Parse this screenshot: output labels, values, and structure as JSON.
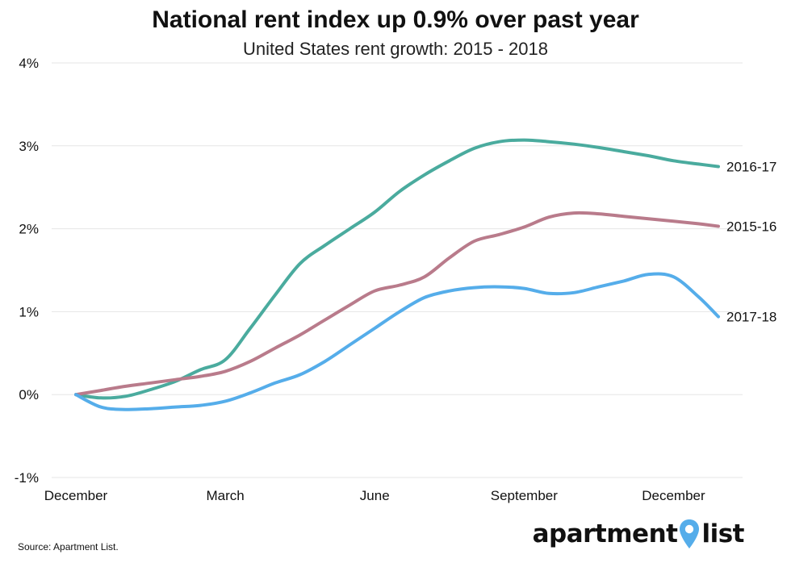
{
  "chart_data": {
    "type": "line",
    "title": "National rent index up 0.9% over past year",
    "subtitle": "United States rent growth: 2015 - 2018",
    "x_tick_labels": [
      "December",
      "March",
      "June",
      "September",
      "December"
    ],
    "x_tick_month_index": [
      0,
      3,
      6,
      9,
      12
    ],
    "y_tick_labels": [
      "4%",
      "3%",
      "2%",
      "1%",
      "0%",
      "-1%"
    ],
    "y_tick_values": [
      4,
      3,
      2,
      1,
      0,
      -1
    ],
    "ylim": [
      -1,
      4
    ],
    "xlim": [
      0,
      12.9
    ],
    "grid": "horizontal",
    "series": [
      {
        "name": "2016-17",
        "color": "#4aab9e",
        "x": [
          0,
          0.5,
          1,
          1.5,
          2,
          2.5,
          3,
          3.5,
          4,
          4.5,
          5,
          5.5,
          6,
          6.5,
          7,
          7.5,
          8,
          8.5,
          9,
          9.5,
          10,
          10.5,
          11,
          11.5,
          12,
          12.5,
          12.9
        ],
        "y": [
          0,
          -0.04,
          -0.02,
          0.06,
          0.16,
          0.3,
          0.42,
          0.8,
          1.2,
          1.58,
          1.8,
          2.0,
          2.2,
          2.45,
          2.65,
          2.82,
          2.97,
          3.05,
          3.07,
          3.05,
          3.02,
          2.98,
          2.93,
          2.88,
          2.82,
          2.78,
          2.75
        ]
      },
      {
        "name": "2015-16",
        "color": "#b97b8b",
        "x": [
          0,
          0.5,
          1,
          1.5,
          2,
          2.5,
          3,
          3.5,
          4,
          4.5,
          5,
          5.5,
          6,
          6.5,
          7,
          7.5,
          8,
          8.5,
          9,
          9.5,
          10,
          10.5,
          11,
          11.5,
          12,
          12.5,
          12.9
        ],
        "y": [
          0,
          0.05,
          0.1,
          0.14,
          0.18,
          0.22,
          0.28,
          0.4,
          0.56,
          0.72,
          0.9,
          1.08,
          1.25,
          1.32,
          1.42,
          1.65,
          1.85,
          1.93,
          2.02,
          2.14,
          2.19,
          2.18,
          2.15,
          2.12,
          2.09,
          2.06,
          2.03
        ]
      },
      {
        "name": "2017-18",
        "color": "#55adea",
        "x": [
          0,
          0.5,
          1,
          1.5,
          2,
          2.5,
          3,
          3.5,
          4,
          4.5,
          5,
          5.5,
          6,
          6.5,
          7,
          7.5,
          8,
          8.5,
          9,
          9.5,
          10,
          10.5,
          11,
          11.5,
          12,
          12.5,
          12.9
        ],
        "y": [
          0,
          -0.15,
          -0.18,
          -0.17,
          -0.15,
          -0.13,
          -0.08,
          0.02,
          0.14,
          0.24,
          0.4,
          0.6,
          0.8,
          1.0,
          1.17,
          1.25,
          1.29,
          1.3,
          1.28,
          1.22,
          1.23,
          1.3,
          1.37,
          1.45,
          1.42,
          1.18,
          0.94
        ]
      }
    ]
  },
  "footer": {
    "source": "Source: Apartment List.",
    "brand_word_1": "apartment",
    "brand_word_2": "list",
    "brand_pin_color": "#55adea"
  }
}
